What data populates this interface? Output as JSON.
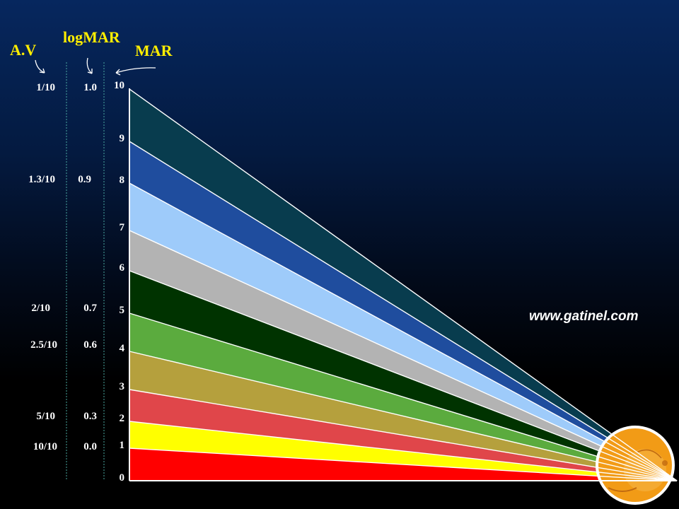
{
  "headers": {
    "av": "A.V",
    "logmar": "logMAR",
    "mar": "MAR"
  },
  "av_labels": [
    "1/10",
    "1.3/10",
    "2/10",
    "2.5/10",
    "5/10",
    "10/10"
  ],
  "logmar_labels": [
    "1.0",
    "0.9",
    "0.7",
    "0.6",
    "0.3",
    "0.0"
  ],
  "mar_scale": [
    "10",
    "9",
    "8",
    "7",
    "6",
    "5",
    "4",
    "3",
    "2",
    "1",
    "0"
  ],
  "website": "www.gatinel.com",
  "bands": [
    {
      "mar_from": 9,
      "mar_to": 10,
      "color": "#083c4e"
    },
    {
      "mar_from": 8,
      "mar_to": 9,
      "color": "#1f4d9e"
    },
    {
      "mar_from": 7,
      "mar_to": 8,
      "color": "#9ecbfa"
    },
    {
      "mar_from": 6,
      "mar_to": 7,
      "color": "#b3b3b3"
    },
    {
      "mar_from": 5,
      "mar_to": 6,
      "color": "#003300"
    },
    {
      "mar_from": 4,
      "mar_to": 5,
      "color": "#5bab3e"
    },
    {
      "mar_from": 3,
      "mar_to": 4,
      "color": "#b5a03d"
    },
    {
      "mar_from": 2,
      "mar_to": 3,
      "color": "#e0464a"
    },
    {
      "mar_from": 1,
      "mar_to": 2,
      "color": "#ffff00"
    },
    {
      "mar_from": 0,
      "mar_to": 1,
      "color": "#ff0000"
    }
  ],
  "colors": {
    "header_text": "#ffee00",
    "label_text": "#ffffff",
    "divider": "#4aa7a0"
  }
}
